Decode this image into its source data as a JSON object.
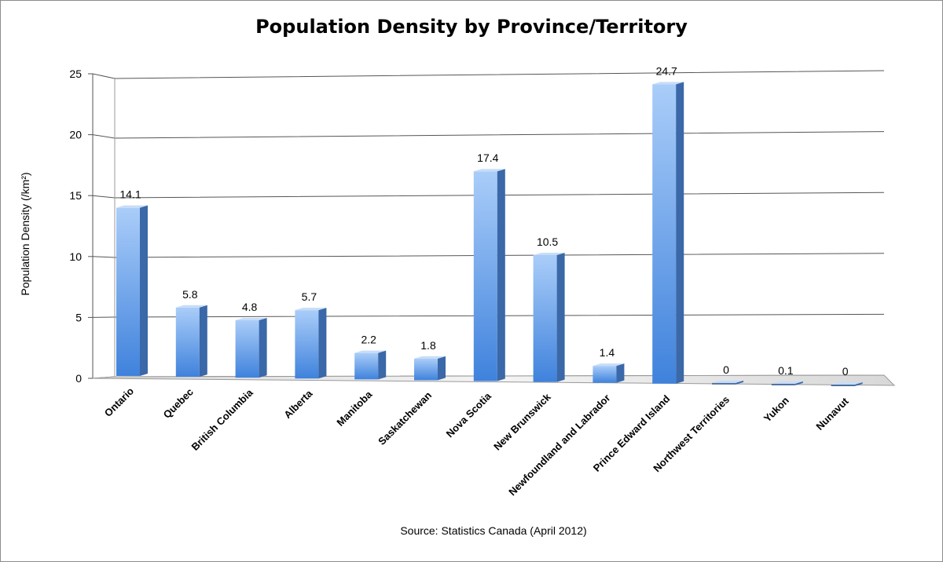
{
  "chart_data": {
    "type": "bar",
    "title": "Population Density by Province/Territory",
    "ylabel": "Population Density (/km²)",
    "xlabel": "",
    "source": "Source: Statistics Canada (April 2012)",
    "categories": [
      "Ontario",
      "Quebec",
      "British Columbia",
      "Alberta",
      "Manitoba",
      "Saskatchewan",
      "Nova Scotia",
      "New Brunswick",
      "Newfoundland and Labrador",
      "Prince Edward Island",
      "Northwest Territories",
      "Yukon",
      "Nunavut"
    ],
    "values": [
      14.1,
      5.8,
      4.8,
      5.7,
      2.2,
      1.8,
      17.4,
      10.5,
      1.4,
      24.7,
      0,
      0.1,
      0
    ],
    "data_labels": [
      "14.1",
      "5.8",
      "4.8",
      "5.7",
      "2.2",
      "1.8",
      "17.4",
      "10.5",
      "1.4",
      "24.7",
      "0",
      "0.1",
      "0"
    ],
    "ylim": [
      0,
      25
    ],
    "yticks": [
      0,
      5,
      10,
      15,
      20,
      25
    ],
    "grid": true,
    "legend": "none",
    "bar_color_top": "#aacdf9",
    "bar_color_bottom": "#3f82dc",
    "bar_side_color": "#3a68a8"
  }
}
